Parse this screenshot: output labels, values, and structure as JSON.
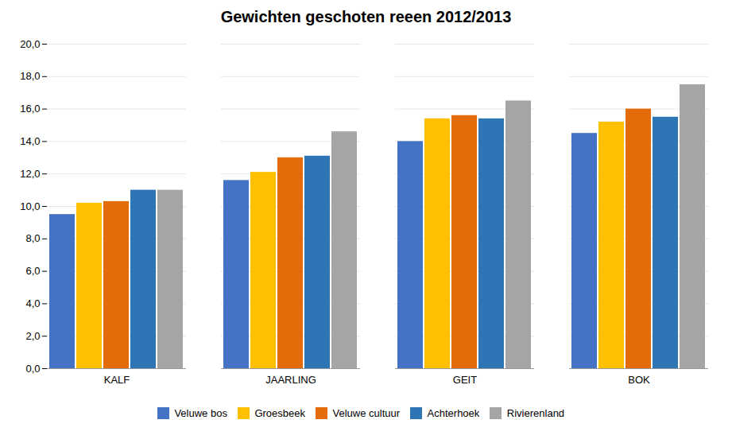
{
  "chart_data": {
    "type": "bar",
    "title": "Gewichten geschoten reeen 2012/2013",
    "categories": [
      "KALF",
      "JAARLING",
      "GEIT",
      "BOK"
    ],
    "series": [
      {
        "name": "Veluwe bos",
        "color": "#4472C4",
        "values": [
          9.5,
          11.6,
          14.0,
          14.5
        ]
      },
      {
        "name": "Groesbeek",
        "color": "#FFC000",
        "values": [
          10.2,
          12.1,
          15.4,
          15.2
        ]
      },
      {
        "name": "Veluwe cultuur",
        "color": "#E36C09",
        "values": [
          10.3,
          13.0,
          15.6,
          16.0
        ]
      },
      {
        "name": "Achterhoek",
        "color": "#2E75B6",
        "values": [
          11.0,
          13.1,
          15.4,
          15.5
        ]
      },
      {
        "name": "Rivierenland",
        "color": "#A5A5A5",
        "values": [
          11.0,
          14.6,
          16.5,
          17.5
        ]
      }
    ],
    "ylim": [
      0,
      20.0
    ],
    "yticks": [
      {
        "value": 0.0,
        "label": "0,0"
      },
      {
        "value": 2.0,
        "label": "2,0"
      },
      {
        "value": 4.0,
        "label": "4,0"
      },
      {
        "value": 6.0,
        "label": "6,0"
      },
      {
        "value": 8.0,
        "label": "8,0"
      },
      {
        "value": 10.0,
        "label": "10,0"
      },
      {
        "value": 12.0,
        "label": "12,0"
      },
      {
        "value": 14.0,
        "label": "14,0"
      },
      {
        "value": 16.0,
        "label": "16,0"
      },
      {
        "value": 18.0,
        "label": "18,0"
      },
      {
        "value": 20.0,
        "label": "20,0"
      }
    ],
    "grid": true,
    "legend": "bottom"
  }
}
